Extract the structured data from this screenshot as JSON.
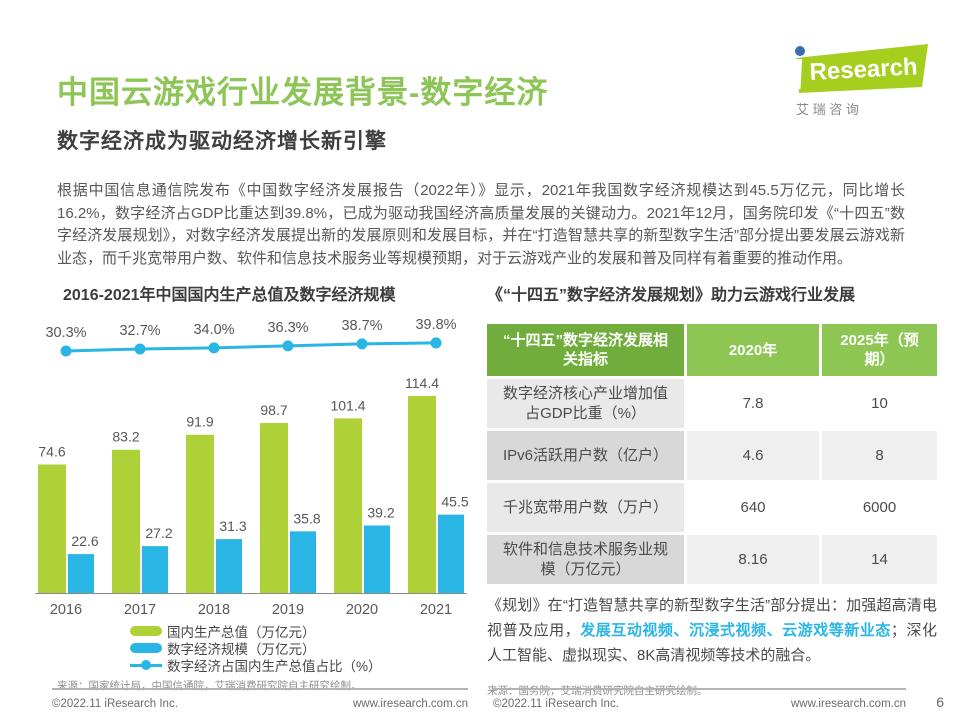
{
  "page": {
    "title": "中国云游戏行业发展背景-数字经济",
    "subtitle": "数字经济成为驱动经济增长新引擎",
    "intro": "根据中国信息通信院发布《中国数字经济发展报告（2022年）》显示，2021年我国数字经济规模达到45.5万亿元，同比增长16.2%，数字经济占GDP比重达到39.8%，已成为驱动我国经济高质量发展的关键动力。2021年12月，国务院印发《“十四五”数字经济发展规划》，对数字经济发展提出新的发展原则和发展目标，并在“打造智慧共享的新型数字生活”部分提出要发展云游戏新业态，而千兆宽带用户数、软件和信息技术服务业等规模预期，对于云游戏产业的发展和普及同样有着重要的推动作用。",
    "page_number": "6"
  },
  "logo": {
    "brand": "Research",
    "i_letter": "i",
    "caption": "艾  瑞  咨  询"
  },
  "colors": {
    "brand_green": "#8dc657",
    "bar_green": "#add136",
    "cyan": "#29b6e5",
    "header_green_dark": "#70ad3c",
    "header_green_light": "#8dc653"
  },
  "chart_data": {
    "type": "bar",
    "title": "2016-2021年中国国内生产总值及数字经济规模",
    "categories": [
      "2016",
      "2017",
      "2018",
      "2019",
      "2020",
      "2021"
    ],
    "series": [
      {
        "name": "国内生产总值（万亿元）",
        "type": "bar",
        "color": "#add136",
        "values": [
          74.6,
          83.2,
          91.9,
          98.7,
          101.4,
          114.4
        ]
      },
      {
        "name": "数字经济规模（万亿元）",
        "type": "bar",
        "color": "#29b6e5",
        "values": [
          22.6,
          27.2,
          31.3,
          35.8,
          39.2,
          45.5
        ]
      },
      {
        "name": "数字经济占国内生产总值占比（%）",
        "type": "line",
        "color": "#29b6e5",
        "values": [
          30.3,
          32.7,
          34.0,
          36.3,
          38.7,
          39.8
        ]
      }
    ],
    "grid": false,
    "legend_position": "bottom",
    "source": "来源：国家统计局，中国信通院，艾瑞消费研究院自主研究绘制。"
  },
  "table": {
    "title": "《“十四五”数字经济发展规划》助力云游戏行业发展",
    "headers": [
      "“十四五”数字经济发展相关指标",
      "2020年",
      "2025年（预期）"
    ],
    "rows": [
      {
        "label": "数字经济核心产业增加值占GDP比重（%）",
        "y2020": "7.8",
        "y2025": "10"
      },
      {
        "label": "IPv6活跃用户数（亿户）",
        "y2020": "4.6",
        "y2025": "8"
      },
      {
        "label": "千兆宽带用户数（万户）",
        "y2020": "640",
        "y2025": "6000"
      },
      {
        "label": "软件和信息技术服务业规模（万亿元）",
        "y2020": "8.16",
        "y2025": "14"
      }
    ],
    "note": {
      "part1": "《规划》在“打造智慧共享的新型数字生活”部分提出：加强超高清电视普及应用，",
      "highlight": "发展互动视频、沉浸式视频、云游戏等新业态",
      "part2": "；深化人工智能、虚拟现实、8K高清视频等技术的融合。"
    },
    "source": "来源：国务院，艾瑞消费研究院自主研究绘制。"
  },
  "footer": {
    "copyright": "©2022.11 iResearch Inc.",
    "url": "www.iresearch.com.cn"
  }
}
